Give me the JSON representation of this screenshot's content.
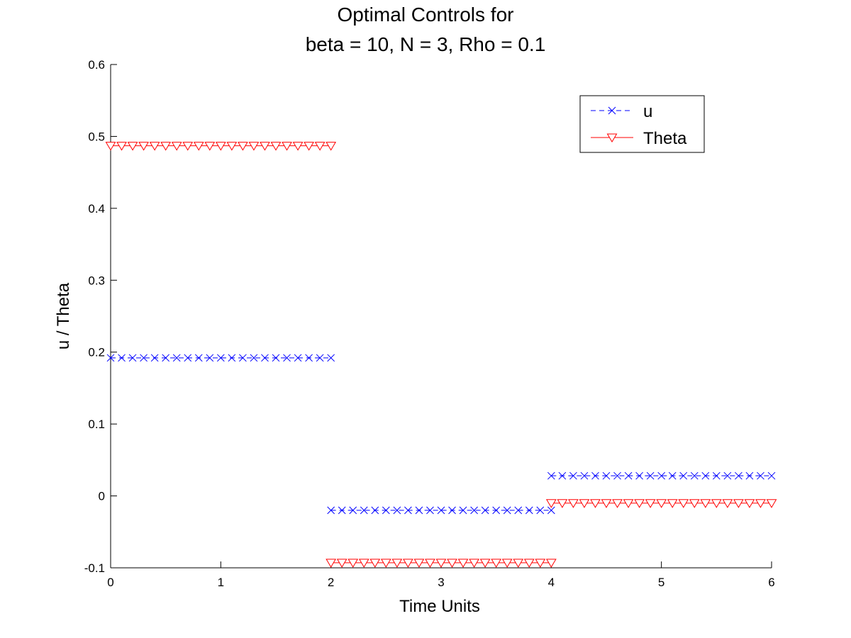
{
  "chart_data": {
    "type": "line",
    "title": [
      "Optimal Controls for",
      "beta = 10, N = 3, Rho = 0.1"
    ],
    "xlabel": "Time Units",
    "ylabel": "u / Theta",
    "xlim": [
      0,
      6
    ],
    "ylim": [
      -0.1,
      0.6
    ],
    "xticks": [
      0,
      1,
      2,
      3,
      4,
      5,
      6
    ],
    "xtick_labels": [
      "0",
      "1",
      "2",
      "3",
      "4",
      "5",
      "6"
    ],
    "yticks": [
      -0.1,
      0,
      0.1,
      0.2,
      0.3,
      0.4,
      0.5,
      0.6
    ],
    "ytick_labels": [
      "-0.1",
      "0",
      "0.1",
      "0.2",
      "0.3",
      "0.4",
      "0.5",
      "0.6"
    ],
    "grid": false,
    "legend_position": "top-right",
    "series": [
      {
        "name": "u",
        "color": "#0000ff",
        "line_style": "dashed",
        "marker": "x",
        "segments": [
          {
            "x_start": 0,
            "x_end": 2,
            "y": 0.192,
            "points": 21
          },
          {
            "x_start": 2,
            "x_end": 4,
            "y": -0.02,
            "points": 21
          },
          {
            "x_start": 4,
            "x_end": 6,
            "y": 0.028,
            "points": 21
          }
        ]
      },
      {
        "name": "Theta",
        "color": "#ff0000",
        "line_style": "solid",
        "marker": "triangle-down",
        "segments": [
          {
            "x_start": 0,
            "x_end": 2,
            "y": 0.487,
            "points": 21
          },
          {
            "x_start": 2,
            "x_end": 4,
            "y": -0.093,
            "points": 21
          },
          {
            "x_start": 4,
            "x_end": 6,
            "y": -0.01,
            "points": 21
          }
        ]
      }
    ]
  }
}
